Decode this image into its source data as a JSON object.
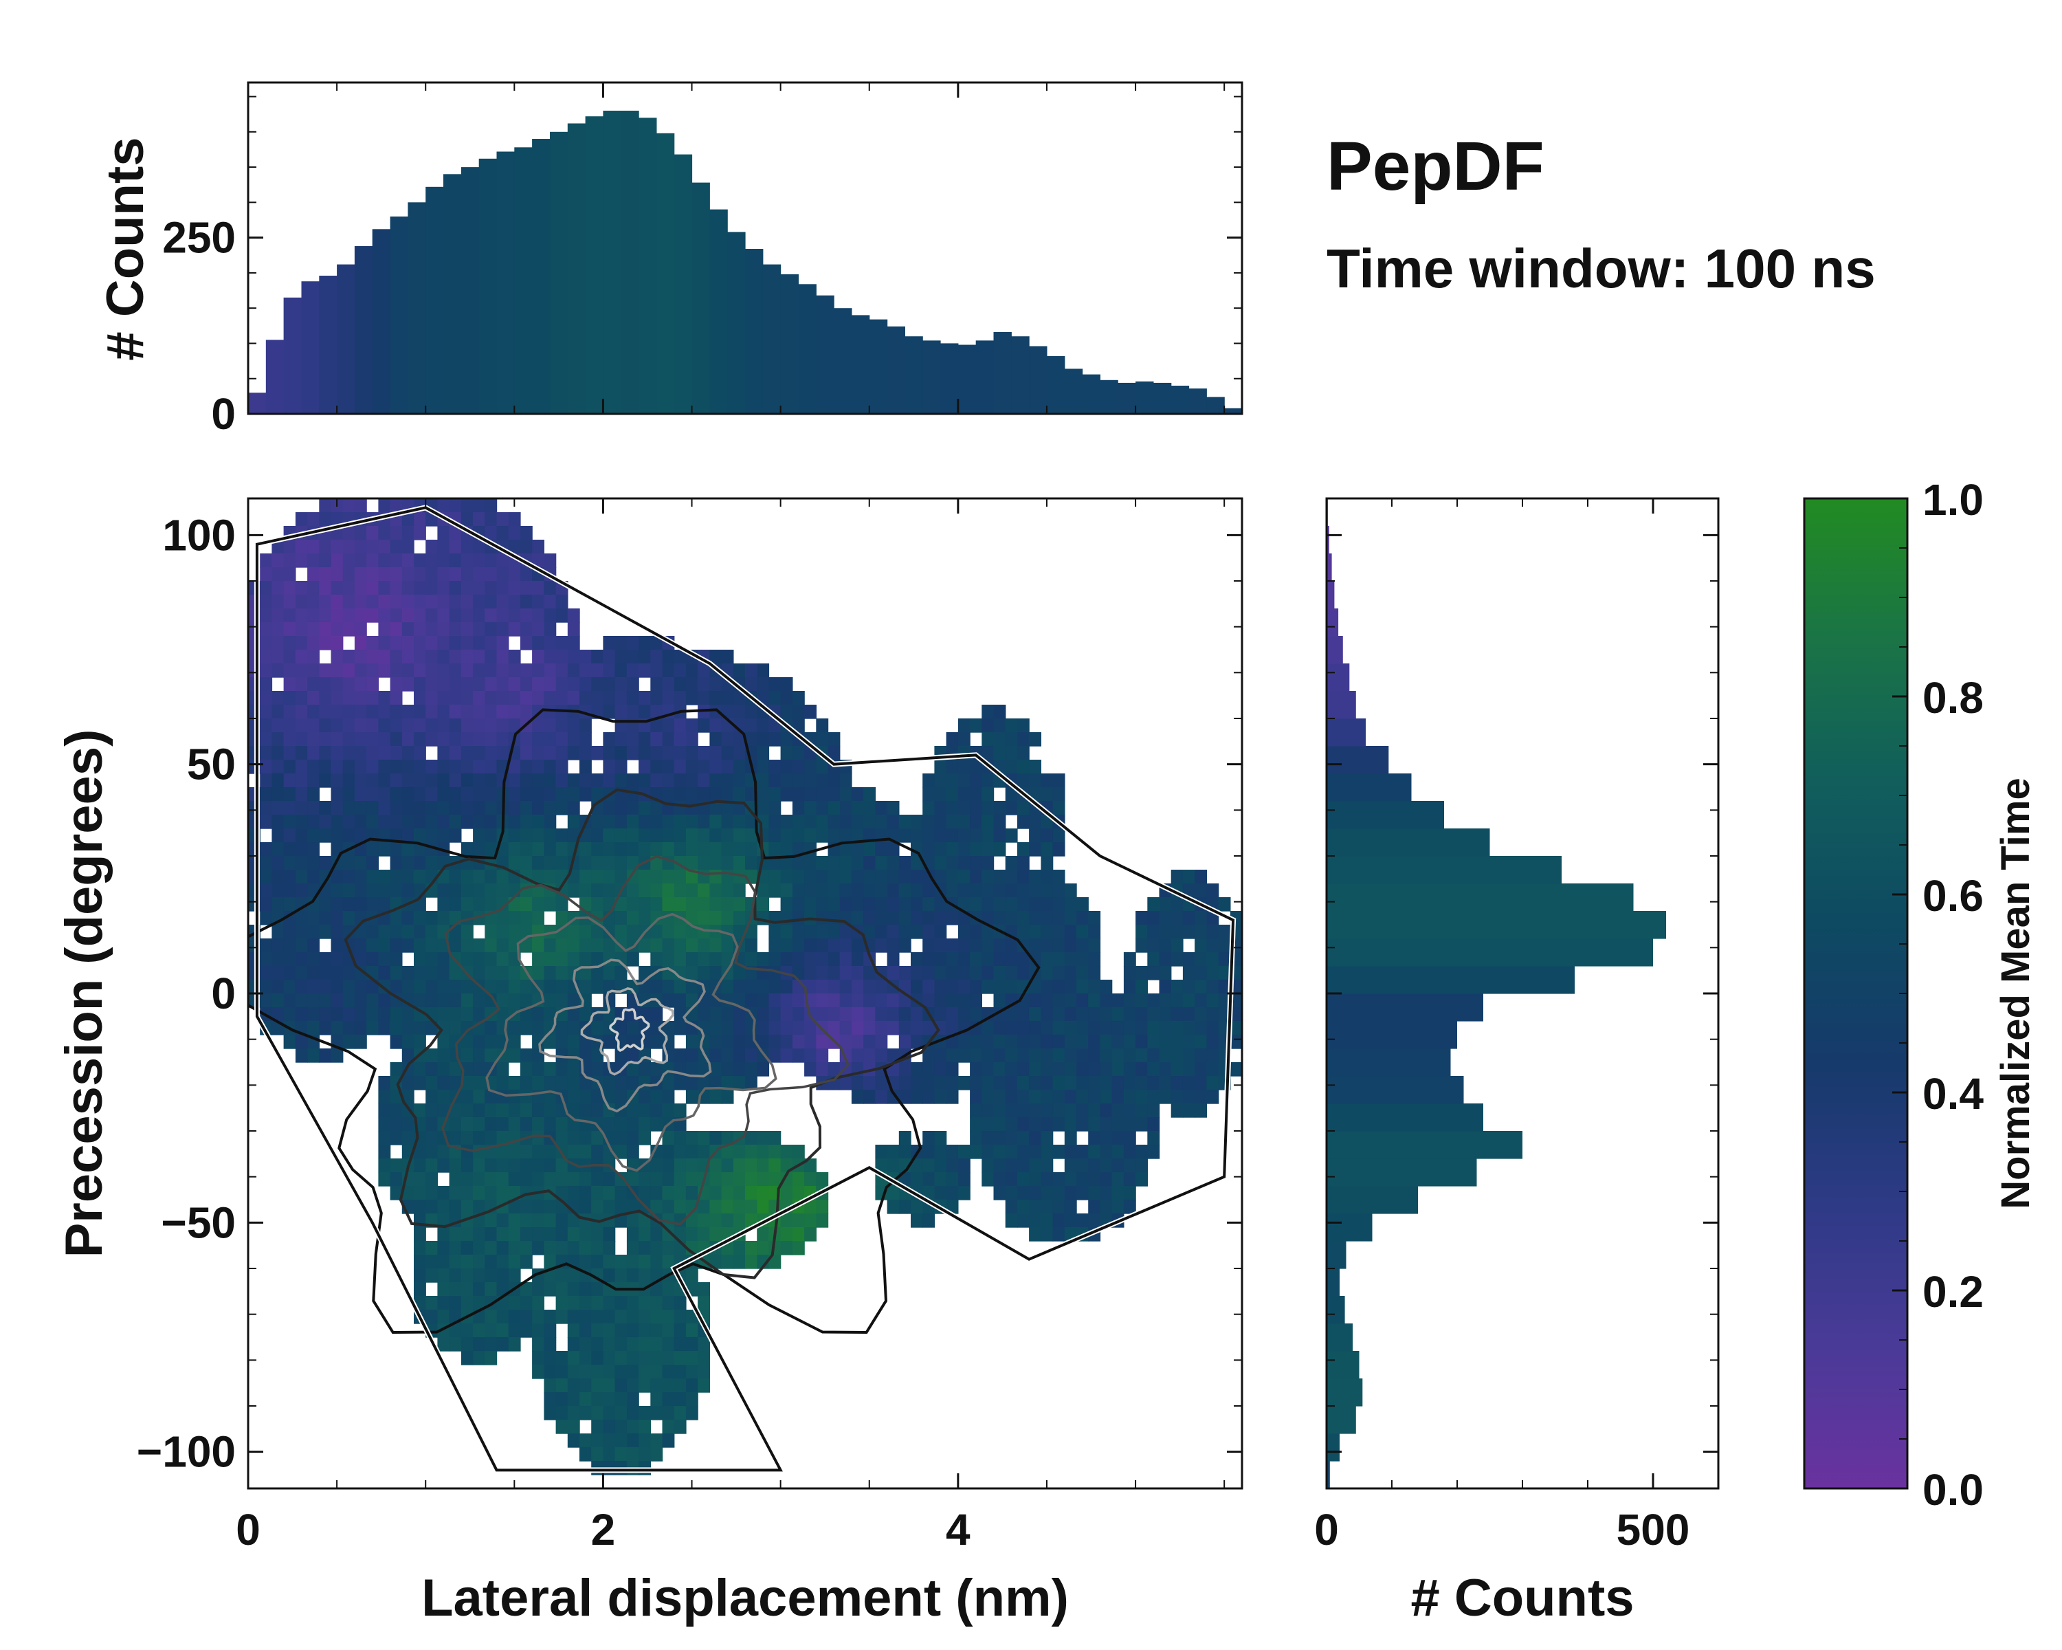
{
  "annotation": {
    "title": "PepDF",
    "subtitle": "Time window: 100 ns"
  },
  "colors": {
    "cmap": [
      "#6a329f",
      "#4a3a98",
      "#2e3a86",
      "#163a6b",
      "#0e4a62",
      "#115e5c",
      "#1a7446",
      "#228b22"
    ],
    "contour_dark": "#111111",
    "contour_light": "#d0d0d0"
  },
  "chart_data": [
    {
      "id": "top-histogram",
      "type": "bar",
      "title": "",
      "xlabel": "",
      "ylabel": "# Counts",
      "xlim": [
        0,
        5.6
      ],
      "ylim": [
        0,
        470
      ],
      "yticks": [
        0,
        250
      ],
      "color_by": "normalized mean time",
      "x_centers": [
        0.05,
        0.15,
        0.25,
        0.35,
        0.45,
        0.55,
        0.65,
        0.75,
        0.85,
        0.95,
        1.05,
        1.15,
        1.25,
        1.35,
        1.45,
        1.55,
        1.65,
        1.75,
        1.85,
        1.95,
        2.05,
        2.15,
        2.25,
        2.35,
        2.45,
        2.55,
        2.65,
        2.75,
        2.85,
        2.95,
        3.05,
        3.15,
        3.25,
        3.35,
        3.45,
        3.55,
        3.65,
        3.75,
        3.85,
        3.95,
        4.05,
        4.15,
        4.25,
        4.35,
        4.45,
        4.55,
        4.65,
        4.75,
        4.85,
        4.95,
        5.05,
        5.15,
        5.25,
        5.35,
        5.45,
        5.55
      ],
      "values": [
        30,
        105,
        165,
        188,
        196,
        212,
        238,
        262,
        280,
        300,
        322,
        340,
        350,
        362,
        372,
        378,
        390,
        400,
        412,
        422,
        430,
        430,
        420,
        398,
        368,
        328,
        290,
        258,
        234,
        212,
        198,
        184,
        168,
        150,
        140,
        134,
        124,
        110,
        104,
        100,
        98,
        104,
        116,
        110,
        96,
        82,
        64,
        56,
        48,
        44,
        46,
        44,
        40,
        36,
        24,
        8
      ],
      "mean_time": [
        0.22,
        0.24,
        0.26,
        0.28,
        0.33,
        0.36,
        0.4,
        0.45,
        0.5,
        0.52,
        0.53,
        0.54,
        0.54,
        0.55,
        0.56,
        0.57,
        0.58,
        0.6,
        0.61,
        0.62,
        0.62,
        0.61,
        0.62,
        0.63,
        0.62,
        0.6,
        0.57,
        0.55,
        0.53,
        0.52,
        0.52,
        0.51,
        0.5,
        0.5,
        0.5,
        0.5,
        0.49,
        0.5,
        0.49,
        0.48,
        0.48,
        0.48,
        0.49,
        0.49,
        0.49,
        0.5,
        0.5,
        0.5,
        0.5,
        0.49,
        0.5,
        0.5,
        0.5,
        0.49,
        0.49,
        0.48
      ]
    },
    {
      "id": "heatmap",
      "type": "heatmap",
      "title": "",
      "xlabel": "Lateral displacement (nm)",
      "ylabel": "Precession (degrees)",
      "xlim": [
        0,
        5.6
      ],
      "ylim": [
        -108,
        108
      ],
      "xticks": [
        0,
        2,
        4
      ],
      "yticks": [
        -100,
        -50,
        0,
        50,
        100
      ],
      "description_points": [
        {
          "x": 0.6,
          "y": 80,
          "mean_time": 0.08
        },
        {
          "x": 1.5,
          "y": 65,
          "mean_time": 0.15
        },
        {
          "x": 2.4,
          "y": 55,
          "mean_time": 0.3
        },
        {
          "x": 2.5,
          "y": 20,
          "mean_time": 0.9
        },
        {
          "x": 1.6,
          "y": 15,
          "mean_time": 0.8
        },
        {
          "x": 2.2,
          "y": -8,
          "mean_time": 0.45
        },
        {
          "x": 3.3,
          "y": -8,
          "mean_time": 0.1
        },
        {
          "x": 3.0,
          "y": -45,
          "mean_time": 0.95
        },
        {
          "x": 1.4,
          "y": -45,
          "mean_time": 0.65
        },
        {
          "x": 2.1,
          "y": -80,
          "mean_time": 0.62
        },
        {
          "x": 4.2,
          "y": 40,
          "mean_time": 0.5
        },
        {
          "x": 4.6,
          "y": -25,
          "mean_time": 0.5
        },
        {
          "x": 5.2,
          "y": 5,
          "mean_time": 0.5
        },
        {
          "x": 0.5,
          "y": 0,
          "mean_time": 0.45
        }
      ],
      "density_peak": {
        "x": 2.15,
        "y": -8
      }
    },
    {
      "id": "right-histogram",
      "type": "bar",
      "orientation": "horizontal",
      "title": "",
      "xlabel": "# Counts",
      "ylabel": "",
      "xlim": [
        0,
        600
      ],
      "ylim": [
        -108,
        108
      ],
      "xticks": [
        0,
        500
      ],
      "color_by": "normalized mean time",
      "y_centers": [
        -105,
        -99,
        -93,
        -87,
        -81,
        -75,
        -69,
        -63,
        -57,
        -51,
        -45,
        -39,
        -33,
        -27,
        -21,
        -15,
        -9,
        -3,
        3,
        9,
        15,
        21,
        27,
        33,
        39,
        45,
        51,
        57,
        63,
        69,
        75,
        81,
        87,
        93,
        99,
        105
      ],
      "values": [
        5,
        20,
        45,
        55,
        50,
        40,
        28,
        20,
        30,
        70,
        140,
        230,
        300,
        240,
        210,
        190,
        200,
        240,
        380,
        500,
        520,
        470,
        360,
        250,
        180,
        130,
        95,
        60,
        45,
        35,
        25,
        18,
        12,
        8,
        4,
        2
      ],
      "mean_time": [
        0.5,
        0.6,
        0.65,
        0.65,
        0.64,
        0.62,
        0.58,
        0.56,
        0.56,
        0.58,
        0.6,
        0.62,
        0.62,
        0.57,
        0.5,
        0.48,
        0.46,
        0.46,
        0.55,
        0.62,
        0.64,
        0.64,
        0.62,
        0.6,
        0.55,
        0.48,
        0.4,
        0.3,
        0.22,
        0.2,
        0.16,
        0.14,
        0.12,
        0.1,
        0.1,
        0.08
      ]
    },
    {
      "id": "colorbar",
      "type": "colorbar",
      "title": "",
      "ylabel": "Normalized Mean Time",
      "ylim": [
        0,
        1
      ],
      "yticks": [
        "0.0",
        "0.2",
        "0.4",
        "0.6",
        "0.8",
        "1.0"
      ]
    }
  ]
}
